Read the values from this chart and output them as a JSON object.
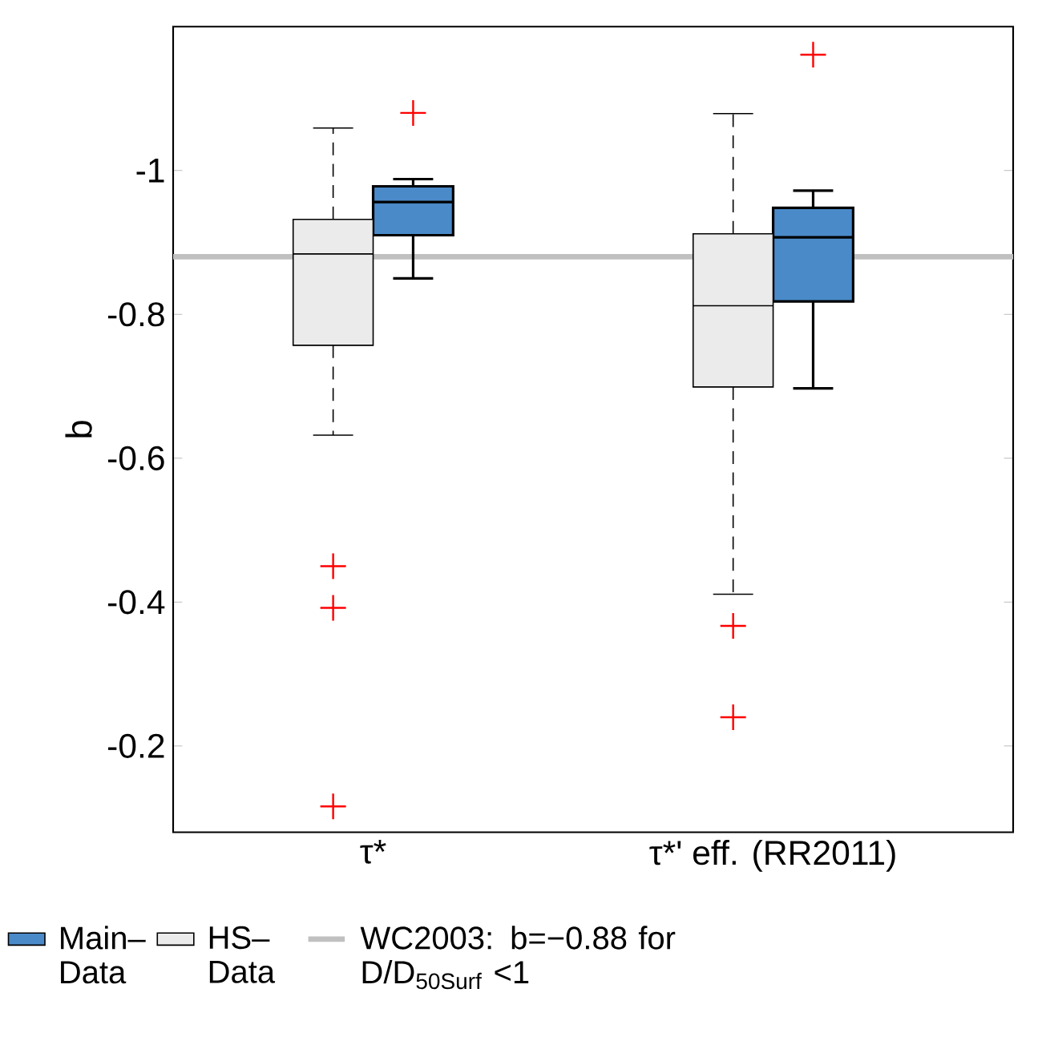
{
  "chart_data": {
    "type": "box",
    "ylabel": "b",
    "categories": [
      "τ*",
      "τ*' eff. (RR2011)"
    ],
    "ylim": [
      -0.08,
      -1.2
    ],
    "yticks": [
      -1,
      -0.8,
      -0.6,
      -0.4,
      -0.2
    ],
    "series": [
      {
        "name": "HS–Data",
        "color": "#ebebeb",
        "line_style": "dashed",
        "boxes": [
          {
            "low": -0.632,
            "q1": -0.757,
            "median": -0.884,
            "q3": -0.932,
            "high": -1.059,
            "outliers": [
              -0.45,
              -0.392,
              -0.116
            ]
          },
          {
            "low": -0.411,
            "q1": -0.699,
            "median": -0.812,
            "q3": -0.912,
            "high": -1.079,
            "outliers": [
              -0.367,
              -0.24
            ]
          }
        ]
      },
      {
        "name": "Main–Data",
        "color": "#4a8ac9",
        "line_style": "solid",
        "boxes": [
          {
            "low": -0.85,
            "q1": -0.91,
            "median": -0.956,
            "q3": -0.978,
            "high": -0.988,
            "outliers": [
              -1.08
            ]
          },
          {
            "low": -0.697,
            "q1": -0.818,
            "median": -0.907,
            "q3": -0.948,
            "high": -0.972,
            "outliers": [
              -1.161
            ]
          }
        ]
      }
    ],
    "ref_lines": [
      {
        "axis": "y",
        "value": -0.88,
        "label": "WC2003: b=−0.88 for D/D$_{50Surf}$ <1",
        "color": "#c0c0c0"
      }
    ],
    "marker": "cross",
    "grid": false,
    "legend": "bottom"
  }
}
